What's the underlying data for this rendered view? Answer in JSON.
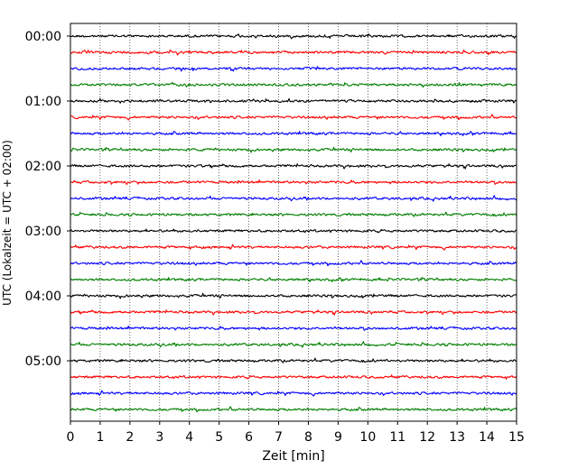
{
  "chart_data": {
    "type": "line",
    "title": "",
    "xlabel": "Zeit  [min]",
    "ylabel": "UTC (Lokalzeit = UTC + 02:00)",
    "xlim": [
      0,
      15
    ],
    "x_ticks": [
      "0",
      "1",
      "2",
      "3",
      "4",
      "5",
      "6",
      "7",
      "8",
      "9",
      "10",
      "11",
      "12",
      "13",
      "14",
      "15"
    ],
    "y_tick_labels": [
      "00:00",
      "01:00",
      "02:00",
      "03:00",
      "04:00",
      "05:00"
    ],
    "trace_interval_min": 15,
    "trace_count": 24,
    "colors": [
      "#000000",
      "#ff0000",
      "#0000ff",
      "#007f00"
    ],
    "vertical_grid": "dotted, every minute",
    "legend": "none"
  }
}
